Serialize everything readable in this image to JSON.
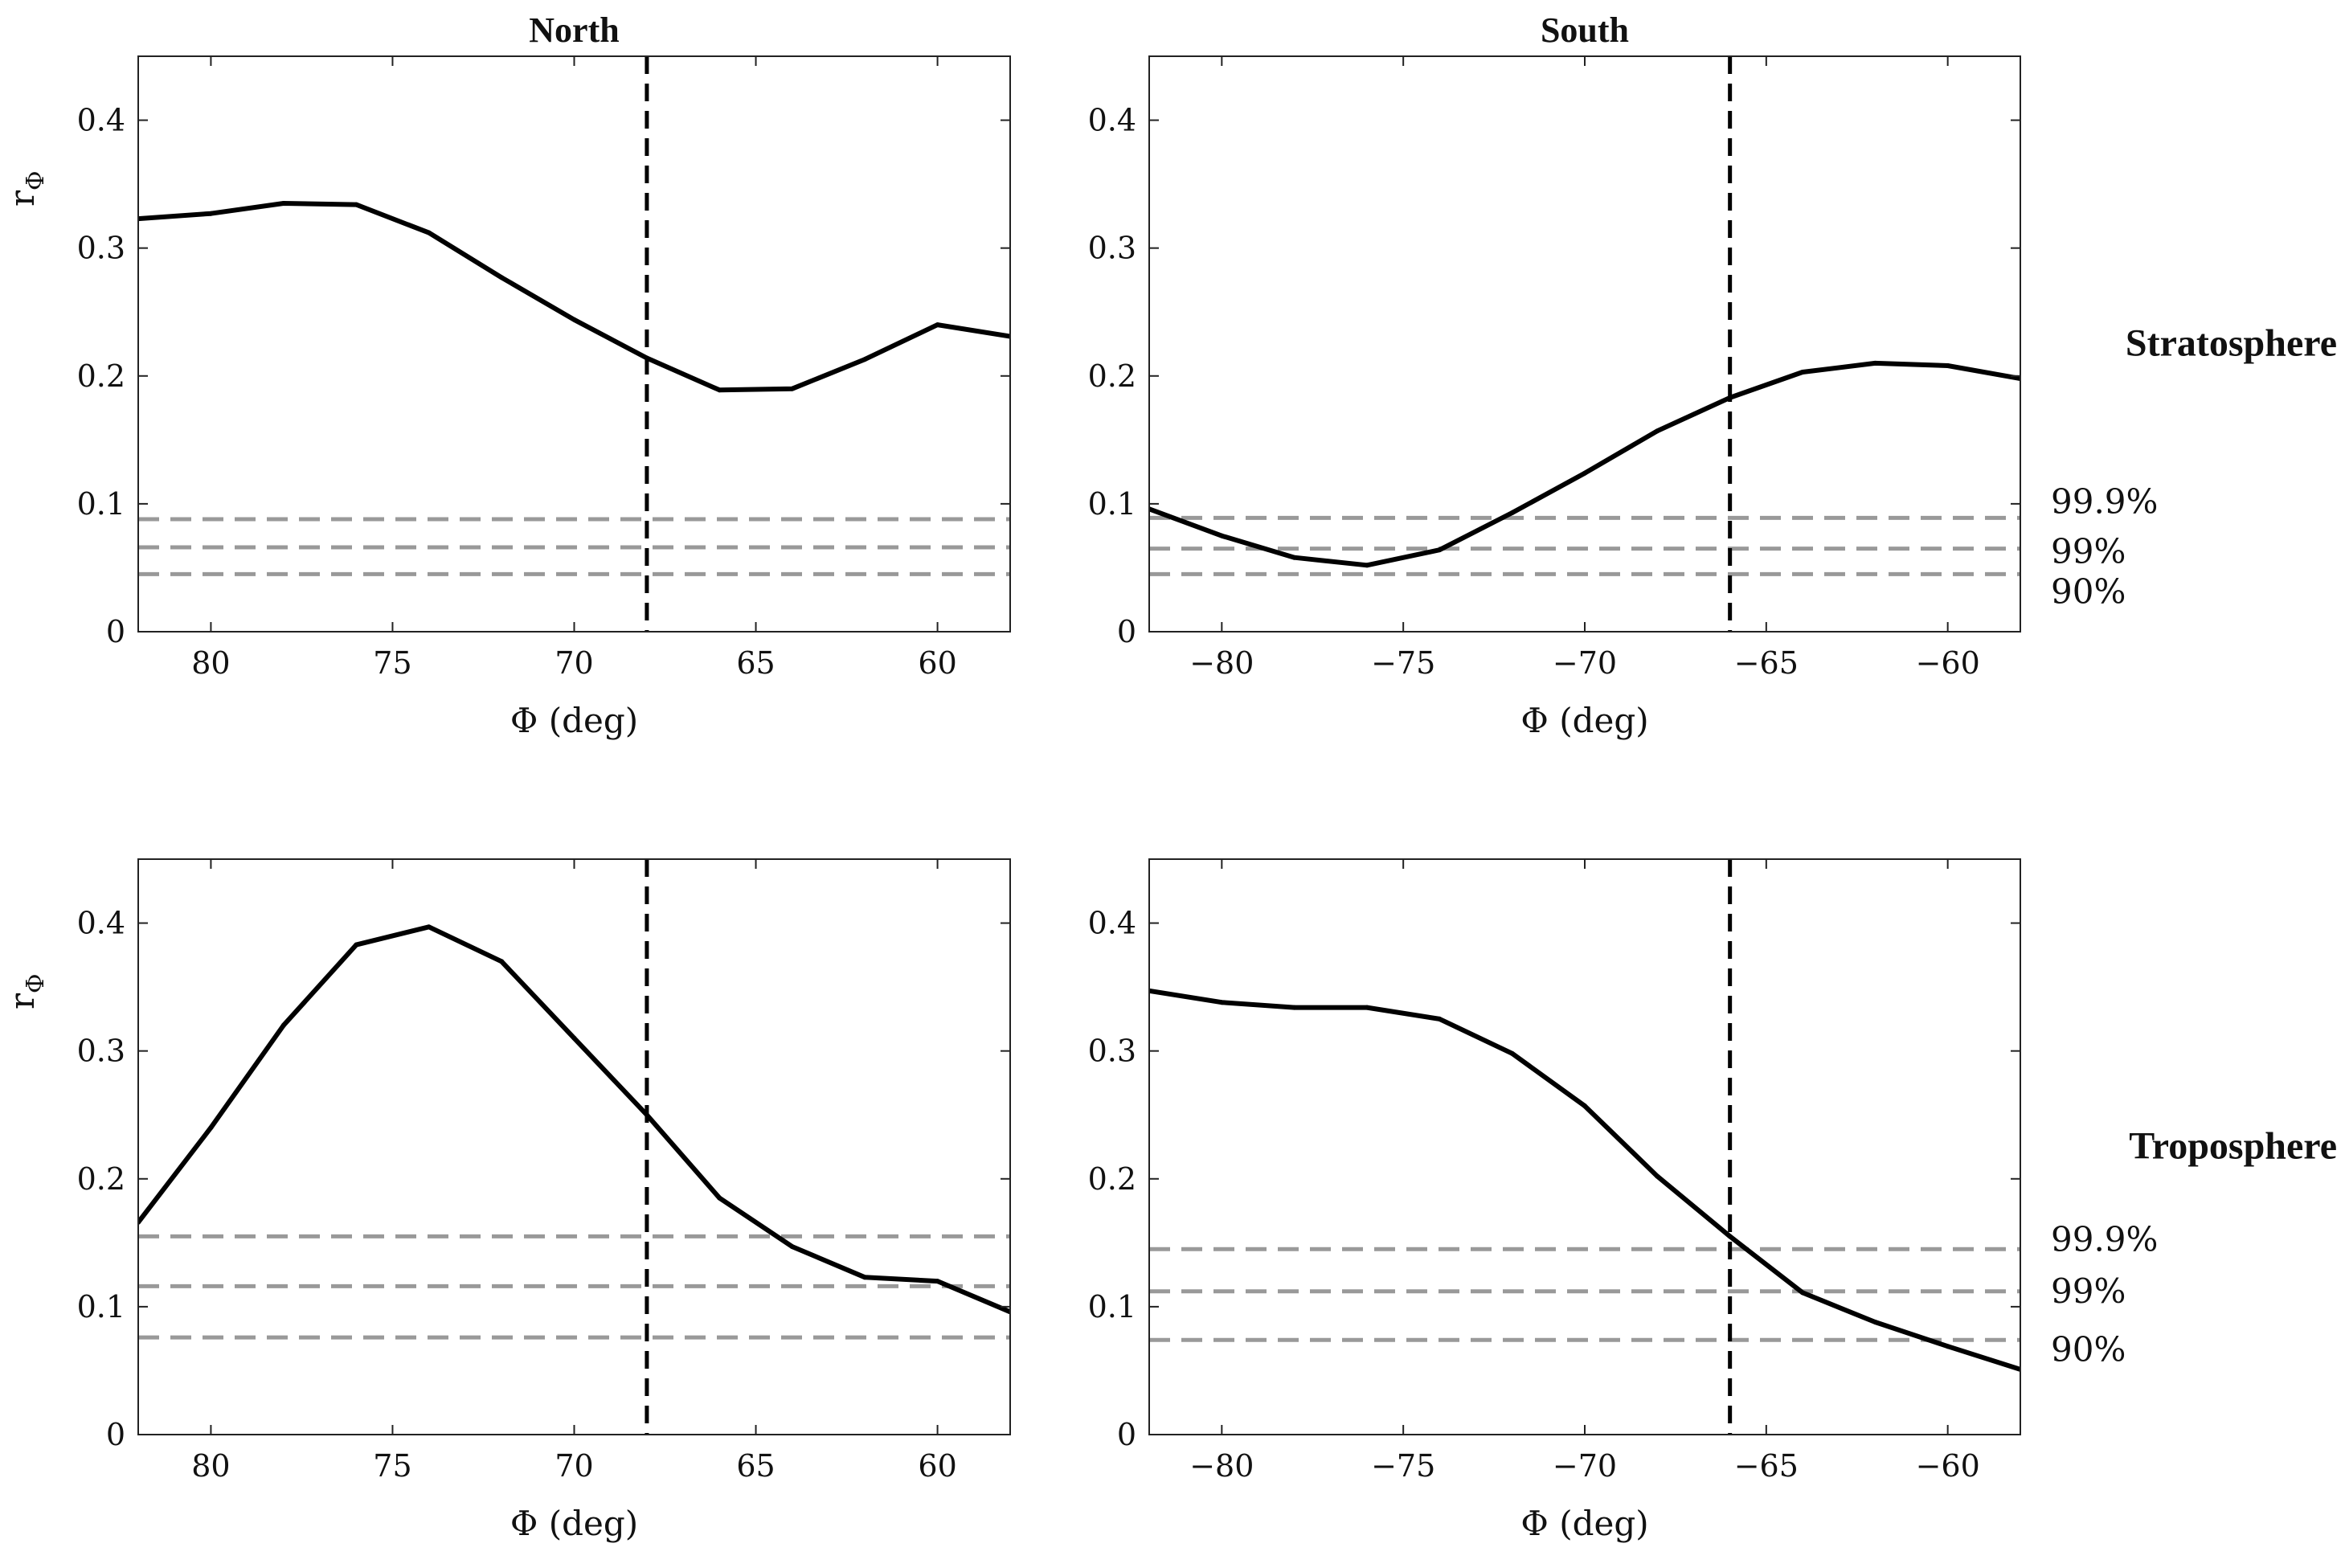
{
  "chart_data": [
    {
      "type": "line",
      "panel": "north-stratosphere",
      "title": "North",
      "row_label": "",
      "xlabel": "Φ (deg)",
      "ylabel": "r",
      "ylabel_sub": "Φ",
      "xlim": [
        82,
        58
      ],
      "ylim": [
        0,
        0.45
      ],
      "xticks": [
        80,
        75,
        70,
        65,
        60
      ],
      "xtick_labels": [
        "80",
        "75",
        "70",
        "65",
        "60"
      ],
      "yticks": [
        0,
        0.1,
        0.2,
        0.3,
        0.4
      ],
      "ytick_labels": [
        "0",
        "0.1",
        "0.2",
        "0.3",
        "0.4"
      ],
      "series": [
        {
          "name": "r_Φ",
          "x": [
            82,
            80,
            78,
            76,
            74,
            72,
            70,
            68,
            66,
            64,
            62,
            60,
            58
          ],
          "y": [
            0.323,
            0.327,
            0.335,
            0.334,
            0.312,
            0.277,
            0.244,
            0.214,
            0.189,
            0.19,
            0.213,
            0.24,
            0.231
          ]
        }
      ],
      "vline_x": 68,
      "significance": [
        {
          "label": "99.9%",
          "y": 0.088
        },
        {
          "label": "99%",
          "y": 0.066
        },
        {
          "label": "90%",
          "y": 0.045
        }
      ],
      "show_significance_labels": false
    },
    {
      "type": "line",
      "panel": "south-stratosphere",
      "title": "South",
      "row_label": "Stratosphere",
      "xlabel": "Φ (deg)",
      "ylabel": "",
      "ylabel_sub": "",
      "xlim": [
        -82,
        -58
      ],
      "ylim": [
        0,
        0.45
      ],
      "xticks": [
        -80,
        -75,
        -70,
        -65,
        -60
      ],
      "xtick_labels": [
        "−80",
        "−75",
        "−70",
        "−65",
        "−60"
      ],
      "yticks": [
        0,
        0.1,
        0.2,
        0.3,
        0.4
      ],
      "ytick_labels": [
        "0",
        "0.1",
        "0.2",
        "0.3",
        "0.4"
      ],
      "series": [
        {
          "name": "r_Φ",
          "x": [
            -82,
            -80,
            -78,
            -76,
            -74,
            -72,
            -70,
            -68,
            -66,
            -64,
            -62,
            -60,
            -58
          ],
          "y": [
            0.096,
            0.075,
            0.058,
            0.052,
            0.064,
            0.093,
            0.124,
            0.157,
            0.183,
            0.203,
            0.21,
            0.208,
            0.198
          ]
        }
      ],
      "vline_x": -66,
      "significance": [
        {
          "label": "99.9%",
          "y": 0.089
        },
        {
          "label": "99%",
          "y": 0.065
        },
        {
          "label": "90%",
          "y": 0.045
        }
      ],
      "show_significance_labels": true
    },
    {
      "type": "line",
      "panel": "north-troposphere",
      "title": "",
      "row_label": "",
      "xlabel": "Φ (deg)",
      "ylabel": "r",
      "ylabel_sub": "Φ",
      "xlim": [
        82,
        58
      ],
      "ylim": [
        0,
        0.45
      ],
      "xticks": [
        80,
        75,
        70,
        65,
        60
      ],
      "xtick_labels": [
        "80",
        "75",
        "70",
        "65",
        "60"
      ],
      "yticks": [
        0,
        0.1,
        0.2,
        0.3,
        0.4
      ],
      "ytick_labels": [
        "0",
        "0.1",
        "0.2",
        "0.3",
        "0.4"
      ],
      "series": [
        {
          "name": "r_Φ",
          "x": [
            82,
            80,
            78,
            76,
            74,
            72,
            70,
            68,
            66,
            64,
            62,
            60,
            58
          ],
          "y": [
            0.166,
            0.24,
            0.32,
            0.383,
            0.397,
            0.37,
            0.31,
            0.25,
            0.185,
            0.147,
            0.123,
            0.12,
            0.096
          ]
        }
      ],
      "vline_x": 68,
      "significance": [
        {
          "label": "99.9%",
          "y": 0.155
        },
        {
          "label": "99%",
          "y": 0.116
        },
        {
          "label": "90%",
          "y": 0.076
        }
      ],
      "show_significance_labels": false
    },
    {
      "type": "line",
      "panel": "south-troposphere",
      "title": "",
      "row_label": "Troposphere",
      "xlabel": "Φ (deg)",
      "ylabel": "",
      "ylabel_sub": "",
      "xlim": [
        -82,
        -58
      ],
      "ylim": [
        0,
        0.45
      ],
      "xticks": [
        -80,
        -75,
        -70,
        -65,
        -60
      ],
      "xtick_labels": [
        "−80",
        "−75",
        "−70",
        "−65",
        "−60"
      ],
      "yticks": [
        0,
        0.1,
        0.2,
        0.3,
        0.4
      ],
      "ytick_labels": [
        "0",
        "0.1",
        "0.2",
        "0.3",
        "0.4"
      ],
      "series": [
        {
          "name": "r_Φ",
          "x": [
            -82,
            -80,
            -78,
            -76,
            -74,
            -72,
            -70,
            -68,
            -66,
            -64,
            -62,
            -60,
            -58
          ],
          "y": [
            0.347,
            0.338,
            0.334,
            0.334,
            0.325,
            0.298,
            0.257,
            0.202,
            0.155,
            0.111,
            0.088,
            0.069,
            0.051
          ]
        }
      ],
      "vline_x": -66,
      "significance": [
        {
          "label": "99.9%",
          "y": 0.145
        },
        {
          "label": "99%",
          "y": 0.112
        },
        {
          "label": "90%",
          "y": 0.074
        }
      ],
      "show_significance_labels": true
    }
  ],
  "colors": {
    "curve": "#000000",
    "vline": "#000000",
    "significance": "#999999",
    "axes": "#222222"
  }
}
